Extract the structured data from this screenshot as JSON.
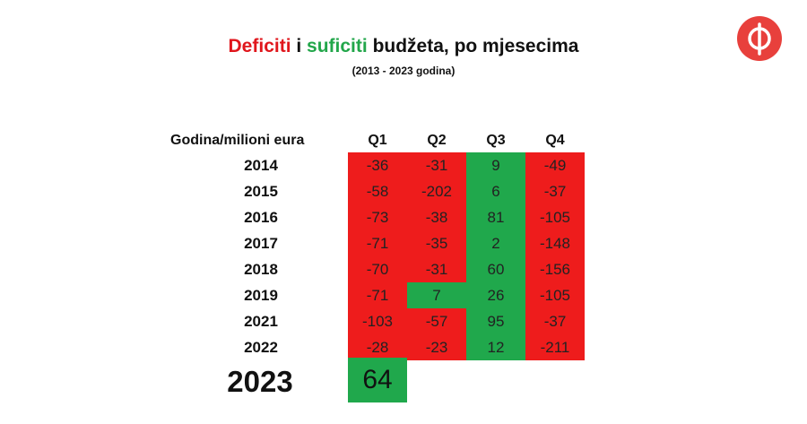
{
  "title": {
    "part1": "Deficiti",
    "part2": " i ",
    "part3": "suficiti",
    "part4": " budžeta, po mjesecima"
  },
  "subtitle": "(2013 - 2023 godina)",
  "colors": {
    "deficit": "#ee1c1c",
    "surplus": "#20a84c",
    "logo": "#e8403c"
  },
  "logo_icon": "phi-logo-icon",
  "table": {
    "header_label": "Godina/milioni eura",
    "columns": [
      "Q1",
      "Q2",
      "Q3",
      "Q4"
    ],
    "rows": [
      {
        "year": "2014",
        "values": [
          "-36",
          "-31",
          "9",
          "-49"
        ]
      },
      {
        "year": "2015",
        "values": [
          "-58",
          "-202",
          "6",
          "-37"
        ]
      },
      {
        "year": "2016",
        "values": [
          "-73",
          "-38",
          "81",
          "-105"
        ]
      },
      {
        "year": "2017",
        "values": [
          "-71",
          "-35",
          "2",
          "-148"
        ]
      },
      {
        "year": "2018",
        "values": [
          "-70",
          "-31",
          "60",
          "-156"
        ]
      },
      {
        "year": "2019",
        "values": [
          "-71",
          "7",
          "26",
          "-105"
        ]
      },
      {
        "year": "2021",
        "values": [
          "-103",
          "-57",
          "95",
          "-37"
        ]
      },
      {
        "year": "2022",
        "values": [
          "-28",
          "-23",
          "12",
          "-211"
        ]
      }
    ],
    "highlight": {
      "year": "2023",
      "value": "64"
    }
  }
}
